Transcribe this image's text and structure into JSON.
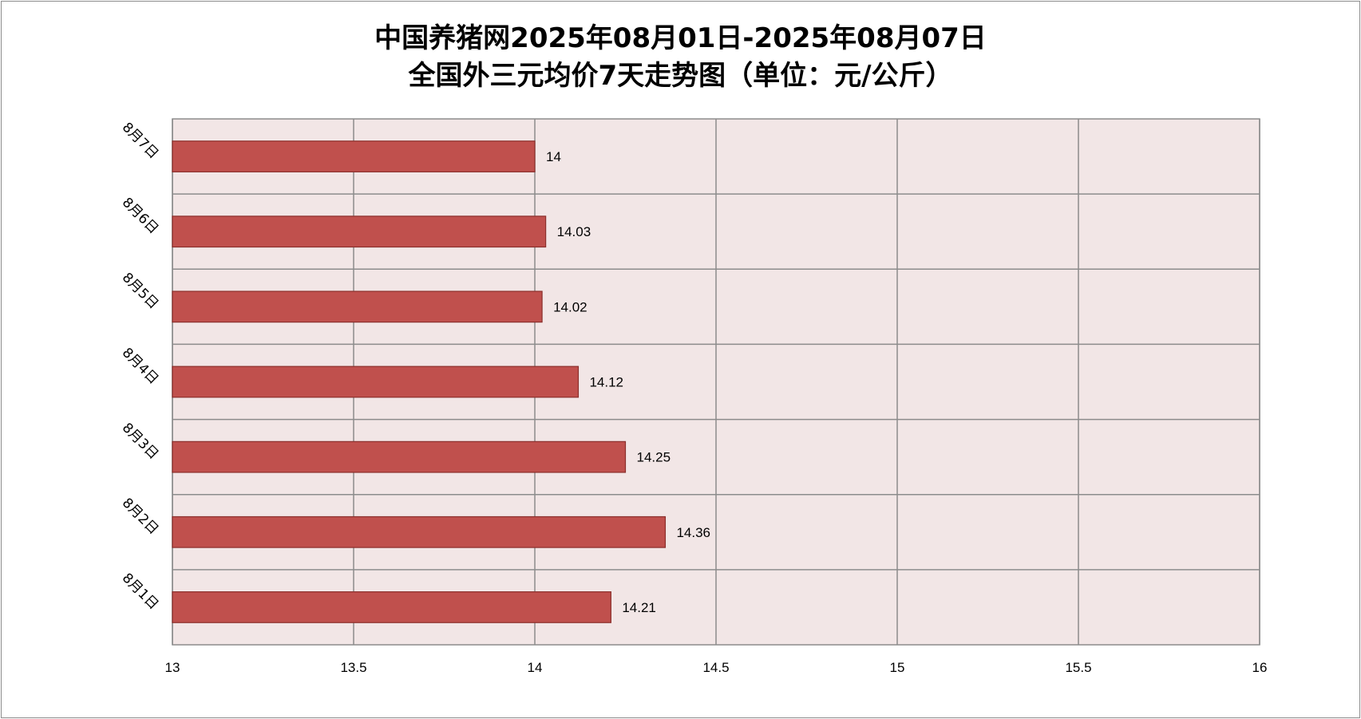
{
  "chart_data": {
    "type": "bar",
    "orientation": "horizontal",
    "title": "中国养猪网2025年08月01日-2025年08月07日",
    "subtitle": "全国外三元均价7天走势图（单位：元/公斤）",
    "categories": [
      "8月1日",
      "8月2日",
      "8月3日",
      "8月4日",
      "8月5日",
      "8月6日",
      "8月7日"
    ],
    "values": [
      14.21,
      14.36,
      14.25,
      14.12,
      14.02,
      14.03,
      14
    ],
    "value_labels": [
      "14.21",
      "14.36",
      "14.25",
      "14.12",
      "14.02",
      "14.03",
      "14"
    ],
    "xlim": [
      13,
      16
    ],
    "x_ticks": [
      "13",
      "13.5",
      "14",
      "14.5",
      "15",
      "15.5",
      "16"
    ],
    "grid": true,
    "legend": "none",
    "bar_color": "#c0504d",
    "bar_edge_color": "#8b2f2c",
    "plot_background": "#f2e6e6",
    "grid_color": "#8c8c8c"
  }
}
